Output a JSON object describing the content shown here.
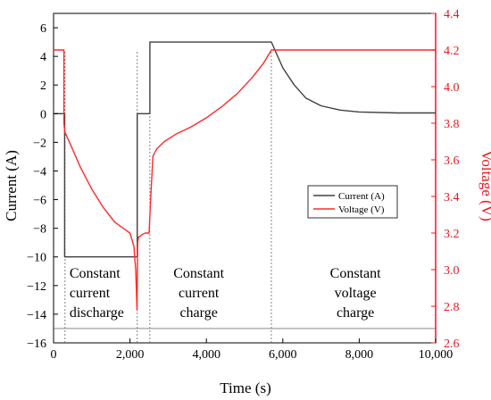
{
  "chart_data": {
    "type": "line",
    "xlabel": "Time (s)",
    "ylabel_left": "Current (A)",
    "ylabel_right": "Voltage (V)",
    "xlim": [
      0,
      10000
    ],
    "ylim_left": [
      -16,
      7
    ],
    "ylim_right": [
      2.6,
      4.4
    ],
    "x_ticks": [
      0,
      2000,
      4000,
      6000,
      8000,
      10000
    ],
    "x_tick_labels": [
      "0",
      "2,000",
      "4,000",
      "6,000",
      "8,000",
      "10,000"
    ],
    "y_left_ticks": [
      6,
      4,
      2,
      0,
      -2,
      -4,
      -6,
      -8,
      -10,
      -12,
      -14,
      -16
    ],
    "y_left_tick_labels": [
      "6",
      "4",
      "2",
      "0",
      "−2",
      "−4",
      "−6",
      "−8",
      "−10",
      "−12",
      "−14",
      "−16"
    ],
    "y_right_ticks": [
      4.4,
      4.2,
      4.0,
      3.8,
      3.6,
      3.4,
      3.2,
      3.0,
      2.8,
      2.6
    ],
    "y_right_tick_labels": [
      "4.4",
      "4.2",
      "4.0",
      "3.8",
      "3.6",
      "3.4",
      "3.2",
      "3.0",
      "2.8",
      "2.6"
    ],
    "grid": false,
    "legend_position": "center-right",
    "colors": {
      "current": "#404040",
      "voltage": "#ff2a2a",
      "right_axis": "#e8191c"
    },
    "series": [
      {
        "name": "Current (A)",
        "axis": "left",
        "x": [
          0,
          290,
          290,
          2190,
          2190,
          2520,
          2520,
          5700,
          6000,
          6300,
          6600,
          7000,
          7500,
          8000,
          9000,
          10000
        ],
        "y": [
          0,
          0,
          -10,
          -10,
          0,
          0,
          5,
          5,
          3.2,
          2.0,
          1.1,
          0.55,
          0.25,
          0.12,
          0.05,
          0.05
        ]
      },
      {
        "name": "Voltage (V)",
        "axis": "right",
        "x": [
          0,
          270,
          270,
          300,
          450,
          700,
          1000,
          1300,
          1600,
          1800,
          2000,
          2100,
          2150,
          2185,
          2200,
          2230,
          2260,
          2300,
          2400,
          2500,
          2540,
          2600,
          2700,
          2900,
          3200,
          3600,
          4000,
          4400,
          4800,
          5200,
          5500,
          5700,
          10000
        ],
        "y": [
          4.2,
          4.2,
          3.8,
          3.75,
          3.68,
          3.56,
          3.44,
          3.34,
          3.26,
          3.23,
          3.2,
          3.13,
          3.0,
          2.78,
          3.15,
          3.18,
          3.18,
          3.19,
          3.2,
          3.2,
          3.38,
          3.62,
          3.66,
          3.7,
          3.74,
          3.78,
          3.83,
          3.89,
          3.96,
          4.05,
          4.13,
          4.2,
          4.2
        ]
      }
    ],
    "annotations": [
      {
        "text": [
          "Constant",
          "current",
          "discharge"
        ],
        "x": 300
      },
      {
        "text": [
          "Constant",
          "current",
          "charge"
        ],
        "x": 3800
      },
      {
        "text": [
          "Constant",
          "voltage",
          "charge"
        ],
        "x": 7900
      }
    ],
    "markers": {
      "vertical_lines_x": [
        300,
        2190,
        2520,
        5700
      ],
      "horizontal_line_y": -15
    }
  }
}
